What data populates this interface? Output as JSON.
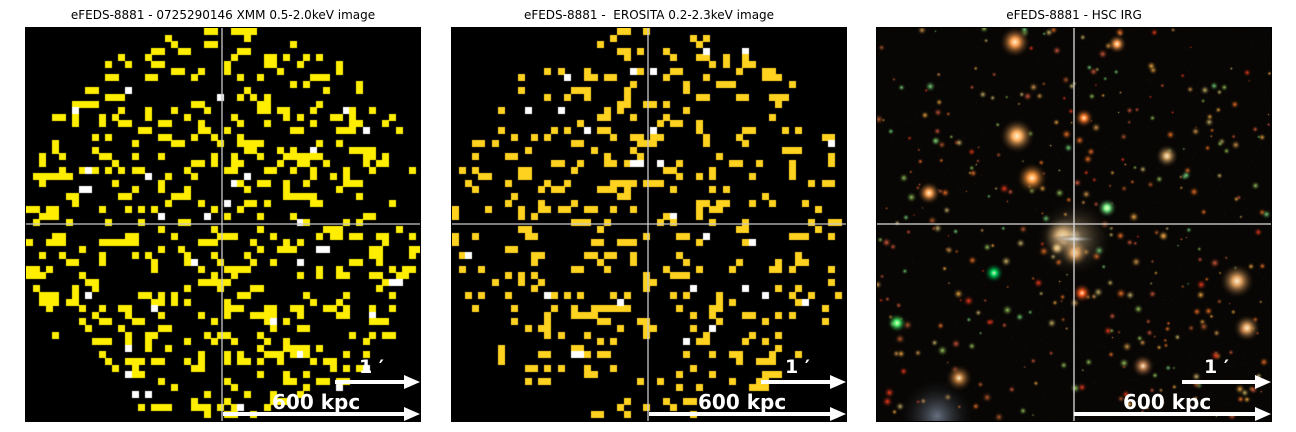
{
  "panels": [
    {
      "title": "eFEDS-8881 - 0725290146 XMM 0.5-2.0keV image",
      "kind": "xray",
      "cell_color": "#ffee00",
      "hot_color": "#ffffff",
      "seed": 8881,
      "density": 0.14,
      "arcmin_label": "1 ′",
      "kpc_label": "600 kpc"
    },
    {
      "title": "eFEDS-8881 -  EROSITA 0.2-2.3keV image",
      "kind": "xray",
      "cell_color": "#ffd21f",
      "hot_color": "#ffffff",
      "seed": 2301,
      "density": 0.11,
      "arcmin_label": "1 ′",
      "kpc_label": "600 kpc"
    },
    {
      "title": "eFEDS-8881 - HSC IRG",
      "kind": "optical",
      "seed": 4242,
      "arcmin_label": "1 ′",
      "kpc_label": "600 kpc"
    }
  ],
  "colors": {
    "crosshair": "#c8c8c8",
    "scalebar": "#ffffff",
    "background": "#000000"
  }
}
